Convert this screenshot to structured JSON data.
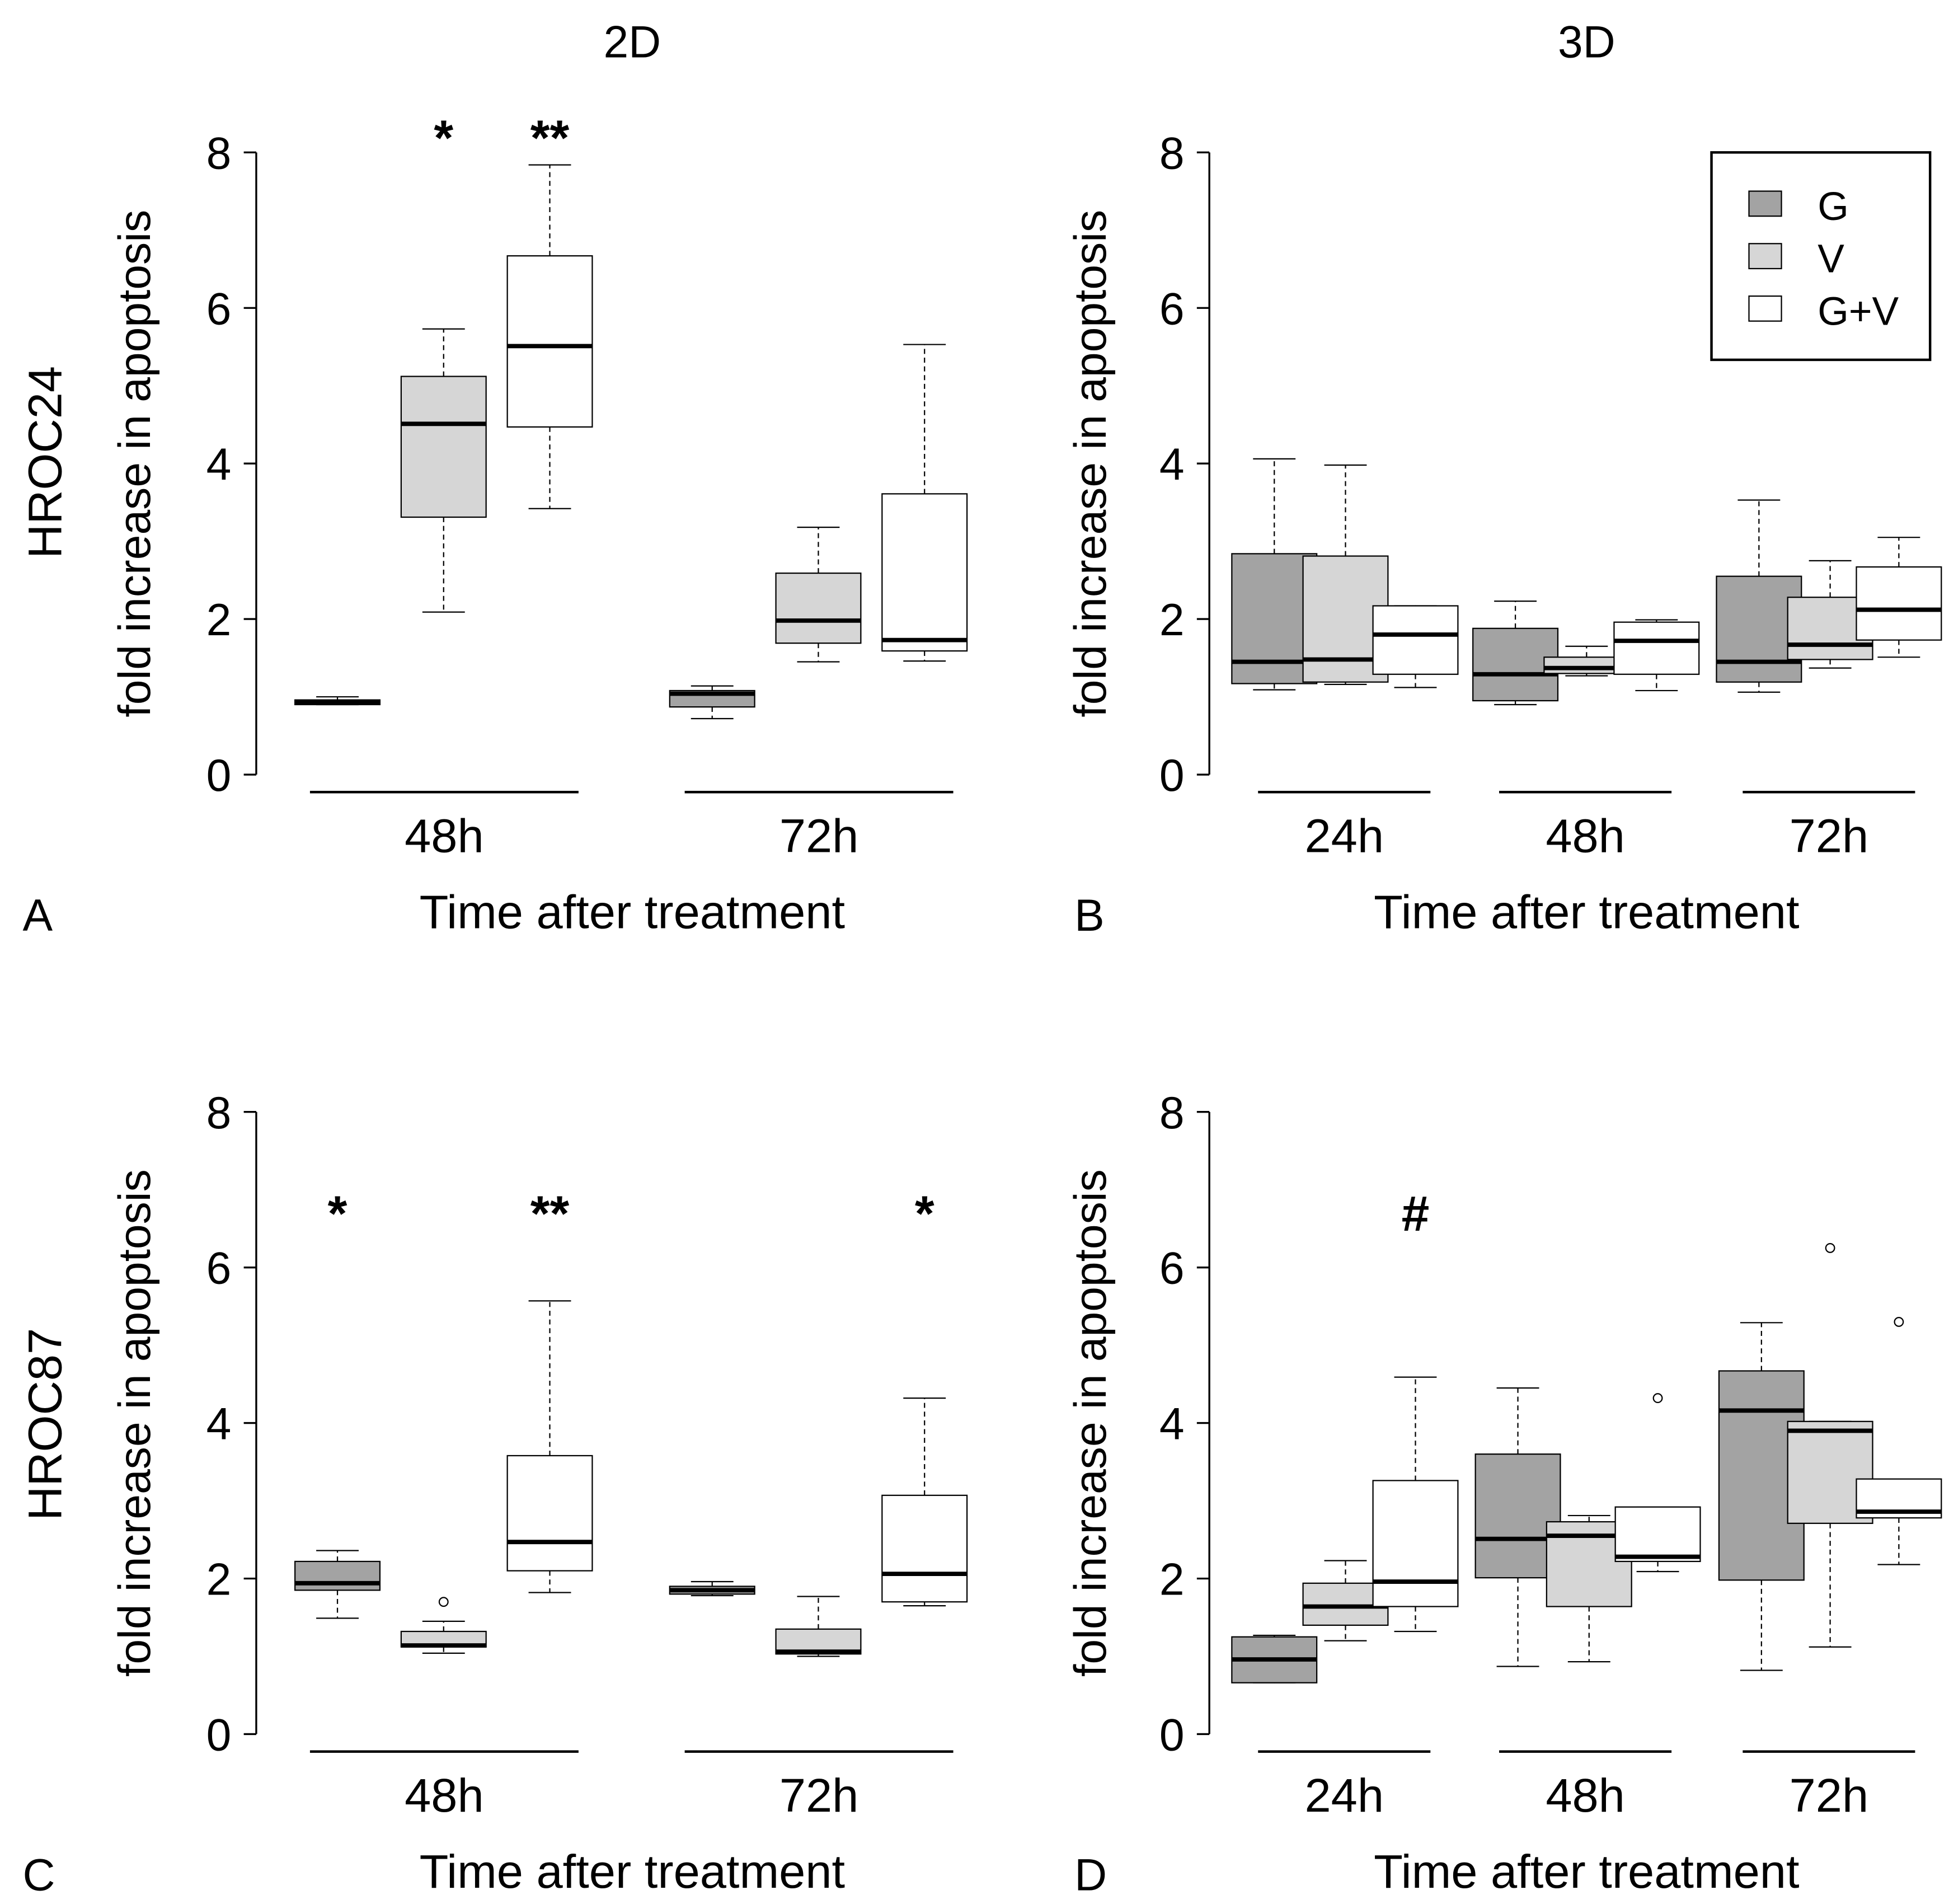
{
  "column_titles": [
    "2D",
    "3D"
  ],
  "row_labels": [
    "HROC24",
    "HROC87"
  ],
  "legend": [
    {
      "label": "G",
      "color": "#a3a3a3"
    },
    {
      "label": "V",
      "color": "#d6d6d6"
    },
    {
      "label": "G+V",
      "color": "#ffffff"
    }
  ],
  "chart_data": [
    {
      "type": "boxplot",
      "panel": "A",
      "title": "2D",
      "row": "HROC24",
      "xlabel": "Time after treatment",
      "ylabel": "fold increase in apoptosis",
      "ylim": [
        0,
        8
      ],
      "yticks": [
        0,
        2,
        4,
        6,
        8
      ],
      "groups": [
        {
          "label": "48h",
          "boxes": [
            {
              "series": "G",
              "min": 0.9,
              "q1": 0.9,
              "median": 0.93,
              "q3": 0.96,
              "max": 1.0,
              "outliers": []
            },
            {
              "series": "V",
              "min": 2.09,
              "q1": 3.31,
              "median": 4.51,
              "q3": 5.12,
              "max": 5.73,
              "outliers": [],
              "sig": "*"
            },
            {
              "series": "G+V",
              "min": 3.42,
              "q1": 4.47,
              "median": 5.51,
              "q3": 6.67,
              "max": 7.84,
              "outliers": [],
              "sig": "**"
            }
          ]
        },
        {
          "label": "72h",
          "boxes": [
            {
              "series": "G",
              "min": 0.72,
              "q1": 0.87,
              "median": 1.04,
              "q3": 1.08,
              "max": 1.14,
              "outliers": []
            },
            {
              "series": "V",
              "min": 1.45,
              "q1": 1.69,
              "median": 1.98,
              "q3": 2.59,
              "max": 3.18,
              "outliers": []
            },
            {
              "series": "G+V",
              "min": 1.46,
              "q1": 1.59,
              "median": 1.73,
              "q3": 3.61,
              "max": 5.53,
              "outliers": []
            }
          ]
        }
      ]
    },
    {
      "type": "boxplot",
      "panel": "B",
      "title": "3D",
      "row": "HROC24",
      "xlabel": "Time after treatment",
      "ylabel": "fold increase in apoptosis",
      "ylim": [
        0,
        8
      ],
      "yticks": [
        0,
        2,
        4,
        6,
        8
      ],
      "legend_position": "top-right",
      "groups": [
        {
          "label": "24h",
          "boxes": [
            {
              "series": "G",
              "min": 1.09,
              "q1": 1.17,
              "median": 1.45,
              "q3": 2.84,
              "max": 4.06,
              "outliers": []
            },
            {
              "series": "V",
              "min": 1.16,
              "q1": 1.19,
              "median": 1.48,
              "q3": 2.81,
              "max": 3.98,
              "outliers": []
            },
            {
              "series": "G+V",
              "min": 1.12,
              "q1": 1.29,
              "median": 1.8,
              "q3": 2.17,
              "max": 2.17,
              "outliers": []
            }
          ]
        },
        {
          "label": "48h",
          "boxes": [
            {
              "series": "G",
              "min": 0.9,
              "q1": 0.95,
              "median": 1.29,
              "q3": 1.88,
              "max": 2.23,
              "outliers": []
            },
            {
              "series": "V",
              "min": 1.27,
              "q1": 1.3,
              "median": 1.37,
              "q3": 1.51,
              "max": 1.65,
              "outliers": []
            },
            {
              "series": "G+V",
              "min": 1.08,
              "q1": 1.29,
              "median": 1.72,
              "q3": 1.96,
              "max": 1.99,
              "outliers": []
            }
          ]
        },
        {
          "label": "72h",
          "boxes": [
            {
              "series": "G",
              "min": 1.06,
              "q1": 1.19,
              "median": 1.45,
              "q3": 2.55,
              "max": 3.53,
              "outliers": []
            },
            {
              "series": "V",
              "min": 1.37,
              "q1": 1.48,
              "median": 1.67,
              "q3": 2.28,
              "max": 2.75,
              "outliers": []
            },
            {
              "series": "G+V",
              "min": 1.51,
              "q1": 1.73,
              "median": 2.12,
              "q3": 2.67,
              "max": 3.05,
              "outliers": []
            }
          ]
        }
      ]
    },
    {
      "type": "boxplot",
      "panel": "C",
      "title": "2D",
      "row": "HROC87",
      "xlabel": "Time after treatment",
      "ylabel": "fold increase in apoptosis",
      "ylim": [
        0,
        8
      ],
      "yticks": [
        0,
        2,
        4,
        6,
        8
      ],
      "groups": [
        {
          "label": "48h",
          "boxes": [
            {
              "series": "G",
              "min": 1.49,
              "q1": 1.85,
              "median": 1.94,
              "q3": 2.22,
              "max": 2.36,
              "outliers": [],
              "sig": "*"
            },
            {
              "series": "V",
              "min": 1.04,
              "q1": 1.12,
              "median": 1.14,
              "q3": 1.32,
              "max": 1.45,
              "outliers": [
                1.7
              ]
            },
            {
              "series": "G+V",
              "min": 1.82,
              "q1": 2.1,
              "median": 2.47,
              "q3": 3.58,
              "max": 5.57,
              "outliers": [],
              "sig": "**"
            }
          ]
        },
        {
          "label": "72h",
          "boxes": [
            {
              "series": "G",
              "min": 1.78,
              "q1": 1.8,
              "median": 1.85,
              "q3": 1.9,
              "max": 1.96,
              "outliers": []
            },
            {
              "series": "V",
              "min": 1.0,
              "q1": 1.03,
              "median": 1.06,
              "q3": 1.35,
              "max": 1.77,
              "outliers": []
            },
            {
              "series": "G+V",
              "min": 1.65,
              "q1": 1.7,
              "median": 2.06,
              "q3": 3.07,
              "max": 4.32,
              "outliers": [],
              "sig": "*"
            }
          ]
        }
      ]
    },
    {
      "type": "boxplot",
      "panel": "D",
      "title": "3D",
      "row": "HROC87",
      "xlabel": "Time after treatment",
      "ylabel": "fold increase in apoptosis",
      "ylim": [
        0,
        8
      ],
      "yticks": [
        0,
        2,
        4,
        6,
        8
      ],
      "groups": [
        {
          "label": "24h",
          "boxes": [
            {
              "series": "G",
              "min": 0.66,
              "q1": 0.66,
              "median": 0.96,
              "q3": 1.25,
              "max": 1.27,
              "outliers": []
            },
            {
              "series": "V",
              "min": 1.2,
              "q1": 1.4,
              "median": 1.64,
              "q3": 1.94,
              "max": 2.23,
              "outliers": []
            },
            {
              "series": "G+V",
              "min": 1.32,
              "q1": 1.64,
              "median": 1.96,
              "q3": 3.26,
              "max": 4.59,
              "outliers": [],
              "sig": "#"
            }
          ]
        },
        {
          "label": "48h",
          "boxes": [
            {
              "series": "G",
              "min": 0.87,
              "q1": 2.01,
              "median": 2.51,
              "q3": 3.6,
              "max": 4.45,
              "outliers": []
            },
            {
              "series": "V",
              "min": 0.93,
              "q1": 1.64,
              "median": 2.55,
              "q3": 2.73,
              "max": 2.81,
              "outliers": []
            },
            {
              "series": "G+V",
              "min": 2.09,
              "q1": 2.22,
              "median": 2.28,
              "q3": 2.92,
              "max": 2.92,
              "outliers": [
                4.32
              ]
            }
          ]
        },
        {
          "label": "72h",
          "boxes": [
            {
              "series": "G",
              "min": 0.82,
              "q1": 1.98,
              "median": 4.16,
              "q3": 4.67,
              "max": 5.29,
              "outliers": []
            },
            {
              "series": "V",
              "min": 1.12,
              "q1": 2.71,
              "median": 3.9,
              "q3": 4.02,
              "max": 4.02,
              "outliers": [
                6.25
              ]
            },
            {
              "series": "G+V",
              "min": 2.18,
              "q1": 2.78,
              "median": 2.86,
              "q3": 3.28,
              "max": 3.28,
              "outliers": [
                5.3
              ]
            }
          ]
        }
      ]
    }
  ]
}
